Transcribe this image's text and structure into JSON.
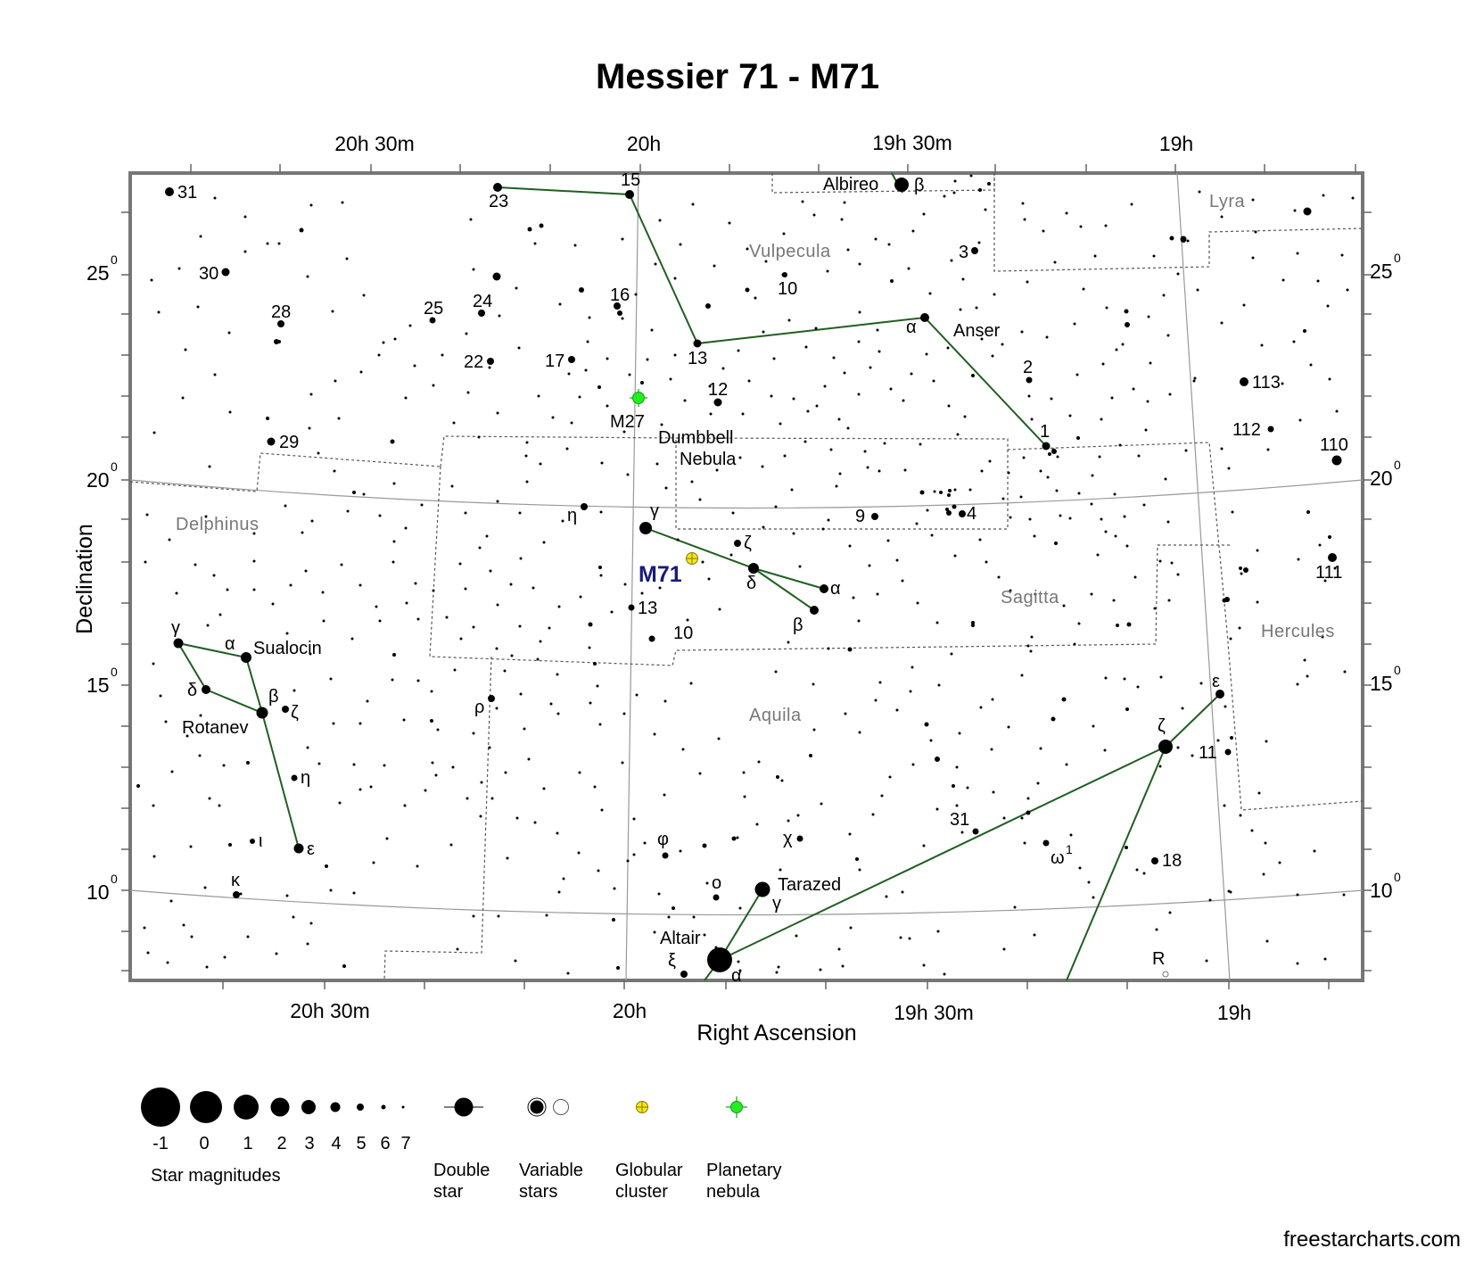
{
  "title": "Messier 71 - M71",
  "axes": {
    "xlabel": "Right Ascension",
    "ylabel": "Declination",
    "ra_ticks_top": [
      "20h 30m",
      "20h",
      "19h 30m",
      "19h"
    ],
    "ra_ticks_bottom": [
      "20h 30m",
      "20h",
      "19h 30m",
      "19h"
    ],
    "dec_ticks": [
      "25",
      "20",
      "15",
      "10"
    ],
    "dec_degree_mark": "0"
  },
  "constellations": [
    "Vulpecula",
    "Lyra",
    "Delphinus",
    "Sagitta",
    "Hercules",
    "Aquila"
  ],
  "deep_sky": [
    {
      "id": "M71",
      "label": "M71",
      "type": "Globular cluster"
    },
    {
      "id": "M27",
      "label": "M27",
      "type": "Planetary nebula",
      "common_name_line1": "Dumbbell",
      "common_name_line2": "Nebula"
    }
  ],
  "star_names": [
    "Albireo",
    "Anser",
    "Sualocin",
    "Rotanev",
    "Tarazed",
    "Altair"
  ],
  "star_labels": [
    "31",
    "23",
    "15",
    "β",
    "30",
    "28",
    "25",
    "24",
    "16",
    "10",
    "3",
    "α",
    "13",
    "17",
    "22",
    "12",
    "2",
    "113",
    "1",
    "112",
    "110",
    "29",
    "η",
    "γ",
    "ζ",
    "9",
    "4",
    "δ",
    "α",
    "β",
    "13",
    "10",
    "111",
    "γ",
    "α",
    "δ",
    "β",
    "ζ",
    "ρ",
    "ε",
    "ζ",
    "η",
    "11",
    "ε",
    "ι",
    "φ",
    "χ",
    "31",
    "ω",
    "1",
    "18",
    "κ",
    "ο",
    "γ",
    "ξ",
    "α",
    "R"
  ],
  "legend": {
    "magnitudes": [
      "-1",
      "0",
      "1",
      "2",
      "3",
      "4",
      "5",
      "6",
      "7"
    ],
    "magnitudes_caption": "Star magnitudes",
    "double_star": [
      "Double",
      "star"
    ],
    "variable_stars": [
      "Variable",
      "stars"
    ],
    "globular_cluster": [
      "Globular",
      "cluster"
    ],
    "planetary_nebula": [
      "Planetary",
      "nebula"
    ]
  },
  "credit": "freestarcharts.com",
  "colors": {
    "constellation_lines": "#1f5f1f",
    "m71_label": "#1a1a7a",
    "globular_cluster": "#f5e61c",
    "planetary_nebula": "#22ee22",
    "boundary": "#555555",
    "grid": "#999999"
  }
}
